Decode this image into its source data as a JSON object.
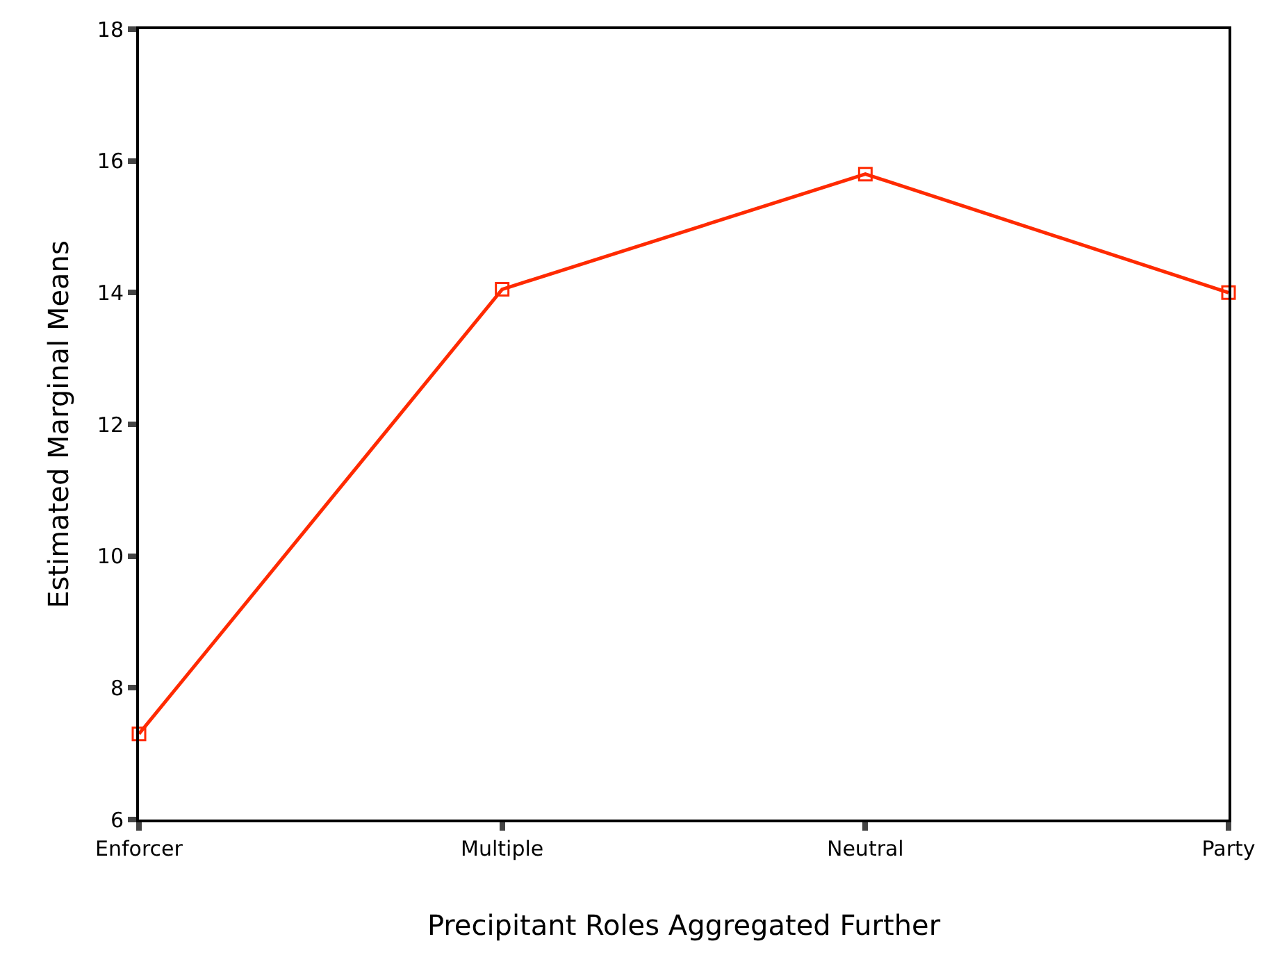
{
  "chart_data": {
    "type": "line",
    "xlabel": "Precipitant Roles Aggregated Further",
    "ylabel": "Estimated Marginal Means",
    "categories": [
      "Enforcer",
      "Multiple",
      "Neutral",
      "Party"
    ],
    "series": [
      {
        "color": "#ff2a00",
        "values": [
          7.3,
          14.05,
          15.8,
          14.0
        ]
      }
    ],
    "ylim": [
      6,
      18
    ],
    "yticks": [
      6,
      8,
      10,
      12,
      14,
      16,
      18
    ],
    "marker": "square",
    "line_style": "solid"
  }
}
